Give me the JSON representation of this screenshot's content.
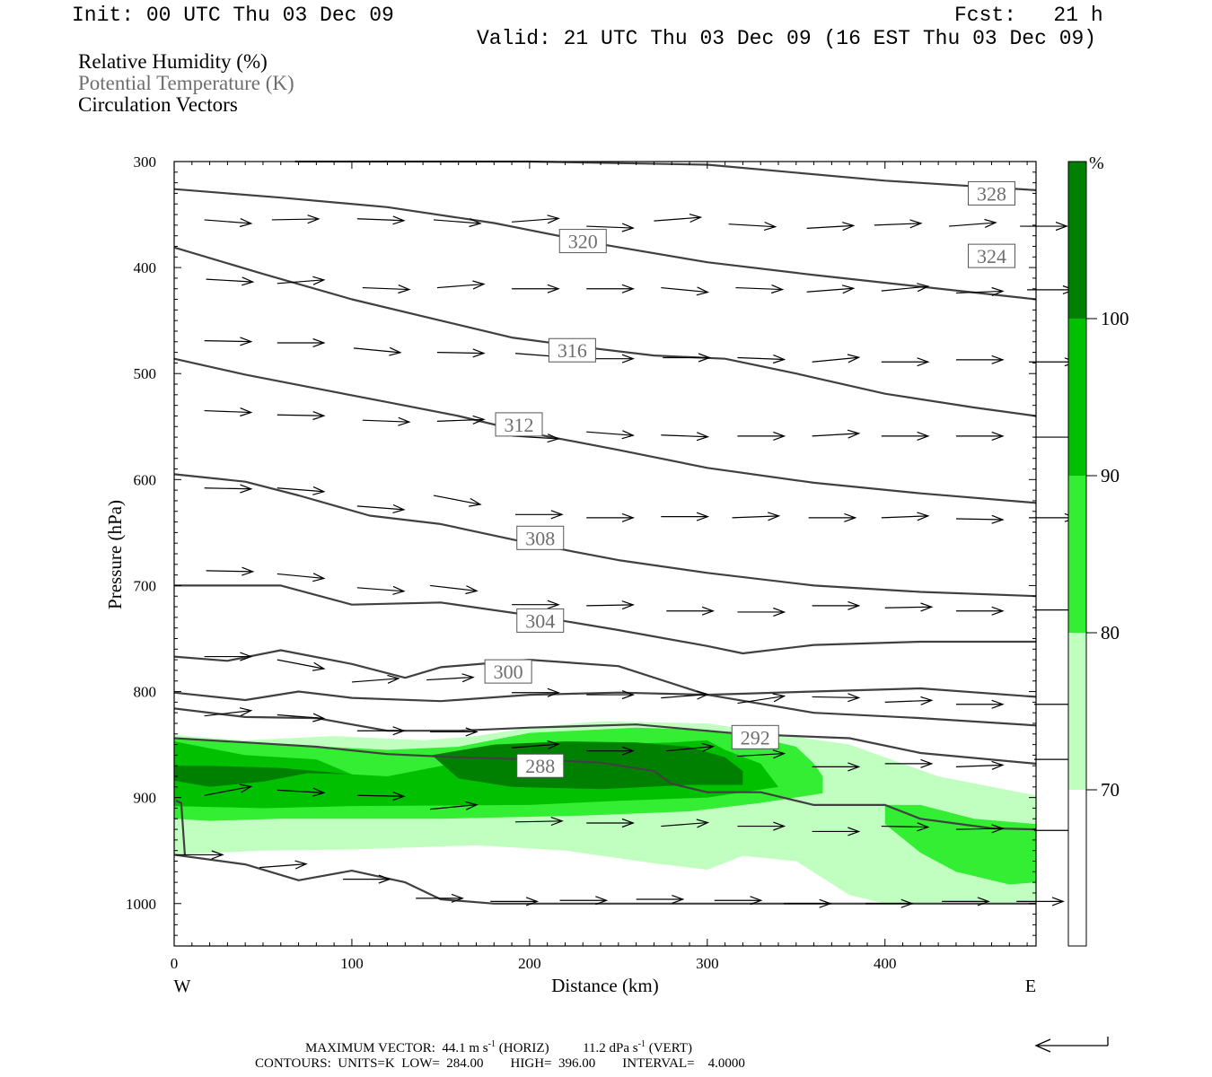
{
  "header": {
    "init": "Init: 00 UTC Thu 03 Dec 09",
    "fcst": "Fcst:   21 h",
    "valid": "Valid: 21 UTC Thu 03 Dec 09 (16 EST Thu 03 Dec 09)"
  },
  "legend": {
    "rh": "Relative Humidity (%)",
    "theta": "Potential Temperature (K)",
    "vectors": "Circulation Vectors"
  },
  "footer": {
    "max_vector_prefix": "MAXIMUM VECTOR:",
    "horiz_value": "44.1 m s",
    "horiz_exp": "-1",
    "horiz_tag": "(HORIZ)",
    "vert_value": "11.2 dPa s",
    "vert_exp": "-1",
    "vert_tag": "(VERT)",
    "contours": "CONTOURS:  UNITS=K  LOW=  284.00        HIGH=  396.00        INTERVAL=    4.0000"
  },
  "colors": {
    "rh_70": "#c0ffc0",
    "rh_80": "#33ee33",
    "rh_90": "#00c000",
    "rh_100": "#008000",
    "contour": "#404040",
    "label_gray": "#6e6e6e"
  },
  "chart_data": {
    "type": "cross-section",
    "xlabel": "Distance (km)",
    "ylabel": "Pressure (hPa)",
    "xlim": [
      0,
      485
    ],
    "ylim": [
      300,
      1040
    ],
    "y_scale": "linear (pressure increasing downward)",
    "x_ticks": [
      "0",
      "100",
      "200",
      "300",
      "400"
    ],
    "x_tick_values": [
      0,
      100,
      200,
      300,
      400
    ],
    "y_ticks": [
      "300",
      "400",
      "500",
      "600",
      "700",
      "800",
      "900",
      "1000"
    ],
    "y_tick_values": [
      300,
      400,
      500,
      600,
      700,
      800,
      900,
      1000
    ],
    "end_labels": {
      "west": "W",
      "east": "E"
    },
    "colorbar": {
      "unit": "%",
      "levels": [
        "70",
        "80",
        "90",
        "100"
      ]
    },
    "contour_labels": [
      {
        "text": "328",
        "x": 460,
        "p": 330
      },
      {
        "text": "324",
        "x": 460,
        "p": 389
      },
      {
        "text": "320",
        "x": 230,
        "p": 375
      },
      {
        "text": "316",
        "x": 224,
        "p": 478
      },
      {
        "text": "312",
        "x": 194,
        "p": 548
      },
      {
        "text": "308",
        "x": 206,
        "p": 655
      },
      {
        "text": "304",
        "x": 206,
        "p": 733
      },
      {
        "text": "300",
        "x": 188,
        "p": 781
      },
      {
        "text": "292",
        "x": 327,
        "p": 843
      },
      {
        "text": "288",
        "x": 206,
        "p": 870
      }
    ],
    "isentropes": [
      [
        [
          68,
          300
        ],
        [
          200,
          300
        ],
        [
          300,
          303
        ],
        [
          400,
          318
        ],
        [
          485,
          327
        ]
      ],
      [
        [
          0,
          326
        ],
        [
          60,
          334
        ],
        [
          120,
          343
        ],
        [
          180,
          358
        ],
        [
          240,
          378
        ],
        [
          300,
          395
        ],
        [
          360,
          407
        ],
        [
          420,
          418
        ],
        [
          485,
          430
        ]
      ],
      [
        [
          0,
          381
        ],
        [
          50,
          406
        ],
        [
          100,
          430
        ],
        [
          150,
          450
        ],
        [
          190,
          466
        ],
        [
          230,
          475
        ],
        [
          270,
          483
        ],
        [
          310,
          486
        ],
        [
          350,
          500
        ],
        [
          400,
          519
        ],
        [
          450,
          532
        ],
        [
          485,
          540
        ]
      ],
      [
        [
          0,
          486
        ],
        [
          40,
          501
        ],
        [
          80,
          514
        ],
        [
          120,
          527
        ],
        [
          160,
          540
        ],
        [
          200,
          556
        ],
        [
          250,
          572
        ],
        [
          300,
          589
        ],
        [
          360,
          603
        ],
        [
          420,
          613
        ],
        [
          485,
          622
        ]
      ],
      [
        [
          0,
          595
        ],
        [
          40,
          602
        ],
        [
          70,
          615
        ],
        [
          110,
          634
        ],
        [
          150,
          642
        ],
        [
          200,
          660
        ],
        [
          250,
          676
        ],
        [
          300,
          688
        ],
        [
          360,
          700
        ],
        [
          420,
          706
        ],
        [
          485,
          710
        ]
      ],
      [
        [
          0,
          700
        ],
        [
          30,
          700
        ],
        [
          60,
          700
        ],
        [
          100,
          718
        ],
        [
          150,
          716
        ],
        [
          200,
          728
        ],
        [
          250,
          742
        ],
        [
          300,
          757
        ],
        [
          320,
          764
        ],
        [
          360,
          756
        ],
        [
          420,
          753
        ],
        [
          485,
          753
        ]
      ],
      [
        [
          0,
          767
        ],
        [
          30,
          771
        ],
        [
          60,
          761
        ],
        [
          100,
          774
        ],
        [
          130,
          787
        ],
        [
          150,
          777
        ],
        [
          200,
          770
        ],
        [
          250,
          776
        ],
        [
          300,
          803
        ],
        [
          360,
          800
        ],
        [
          420,
          797
        ],
        [
          485,
          805
        ]
      ],
      [
        [
          0,
          801
        ],
        [
          40,
          808
        ],
        [
          70,
          800
        ],
        [
          100,
          806
        ],
        [
          150,
          809
        ],
        [
          200,
          803
        ],
        [
          250,
          801
        ],
        [
          300,
          803
        ],
        [
          360,
          820
        ],
        [
          420,
          825
        ],
        [
          485,
          832
        ]
      ],
      [
        [
          0,
          816
        ],
        [
          40,
          824
        ],
        [
          80,
          825
        ],
        [
          120,
          837
        ],
        [
          160,
          837
        ],
        [
          200,
          834
        ],
        [
          260,
          831
        ],
        [
          320,
          840
        ],
        [
          380,
          844
        ],
        [
          420,
          858
        ],
        [
          485,
          868
        ]
      ],
      [
        [
          0,
          844
        ],
        [
          40,
          848
        ],
        [
          80,
          852
        ],
        [
          120,
          859
        ],
        [
          160,
          862
        ],
        [
          200,
          864
        ],
        [
          240,
          867
        ],
        [
          270,
          875
        ],
        [
          280,
          887
        ],
        [
          300,
          895
        ],
        [
          330,
          895
        ],
        [
          360,
          907
        ],
        [
          400,
          907
        ],
        [
          420,
          920
        ],
        [
          460,
          929
        ],
        [
          485,
          930
        ]
      ],
      [
        [
          0,
          954
        ],
        [
          40,
          963
        ],
        [
          70,
          978
        ],
        [
          100,
          969
        ],
        [
          130,
          980
        ],
        [
          150,
          996
        ],
        [
          180,
          1000
        ],
        [
          300,
          1000
        ],
        [
          485,
          1000
        ]
      ],
      [
        [
          1,
          903
        ],
        [
          4,
          905
        ],
        [
          5,
          930
        ],
        [
          6,
          954
        ]
      ]
    ],
    "vectors": [
      [
        17,
        355,
        4
      ],
      [
        55,
        355,
        -1
      ],
      [
        103,
        354,
        2
      ],
      [
        146,
        355,
        4
      ],
      [
        190,
        357,
        -4
      ],
      [
        232,
        361,
        2
      ],
      [
        270,
        356,
        -4
      ],
      [
        312,
        359,
        3
      ],
      [
        356,
        363,
        -3
      ],
      [
        394,
        360,
        -2
      ],
      [
        436,
        361,
        -4
      ],
      [
        476,
        361,
        0
      ],
      [
        18,
        411,
        3
      ],
      [
        58,
        415,
        -4
      ],
      [
        106,
        419,
        2
      ],
      [
        148,
        419,
        -4
      ],
      [
        190,
        420,
        0
      ],
      [
        232,
        420,
        0
      ],
      [
        274,
        419,
        5
      ],
      [
        316,
        419,
        2
      ],
      [
        356,
        423,
        -4
      ],
      [
        398,
        422,
        -5
      ],
      [
        440,
        424,
        -2
      ],
      [
        480,
        421,
        0
      ],
      [
        17,
        469,
        1
      ],
      [
        58,
        471,
        0
      ],
      [
        101,
        476,
        5
      ],
      [
        148,
        480,
        1
      ],
      [
        192,
        481,
        4
      ],
      [
        232,
        486,
        0
      ],
      [
        275,
        485,
        0
      ],
      [
        317,
        485,
        2
      ],
      [
        359,
        489,
        -5
      ],
      [
        398,
        489,
        0
      ],
      [
        440,
        487,
        0
      ],
      [
        481,
        489,
        0
      ],
      [
        17,
        535,
        2
      ],
      [
        58,
        539,
        1
      ],
      [
        106,
        544,
        2
      ],
      [
        148,
        545,
        -2
      ],
      [
        190,
        559,
        3
      ],
      [
        232,
        555,
        4
      ],
      [
        274,
        558,
        2
      ],
      [
        317,
        559,
        0
      ],
      [
        359,
        559,
        -3
      ],
      [
        398,
        559,
        0
      ],
      [
        440,
        559,
        0
      ],
      [
        484,
        560,
        0
      ],
      [
        17,
        608,
        1
      ],
      [
        58,
        608,
        4
      ],
      [
        103,
        625,
        4
      ],
      [
        146,
        615,
        10
      ],
      [
        192,
        633,
        0
      ],
      [
        232,
        636,
        0
      ],
      [
        274,
        635,
        0
      ],
      [
        314,
        636,
        -2
      ],
      [
        357,
        636,
        0
      ],
      [
        398,
        636,
        -2
      ],
      [
        440,
        637,
        1
      ],
      [
        481,
        636,
        0
      ],
      [
        18,
        686,
        1
      ],
      [
        58,
        689,
        5
      ],
      [
        103,
        702,
        4
      ],
      [
        144,
        700,
        6
      ],
      [
        190,
        718,
        0
      ],
      [
        232,
        719,
        -1
      ],
      [
        277,
        724,
        0
      ],
      [
        317,
        725,
        0
      ],
      [
        359,
        719,
        0
      ],
      [
        400,
        721,
        -1
      ],
      [
        440,
        724,
        0
      ],
      [
        484,
        723,
        0
      ],
      [
        17,
        767,
        0
      ],
      [
        58,
        770,
        10
      ],
      [
        100,
        791,
        -4
      ],
      [
        142,
        789,
        -3
      ],
      [
        190,
        801,
        0
      ],
      [
        232,
        803,
        0
      ],
      [
        274,
        806,
        -4
      ],
      [
        317,
        811,
        -8
      ],
      [
        359,
        805,
        1
      ],
      [
        400,
        810,
        -2
      ],
      [
        440,
        812,
        0
      ],
      [
        484,
        812,
        0
      ],
      [
        17,
        823,
        -6
      ],
      [
        58,
        822,
        4
      ],
      [
        103,
        837,
        0
      ],
      [
        144,
        838,
        0
      ],
      [
        190,
        853,
        -4
      ],
      [
        232,
        856,
        0
      ],
      [
        277,
        856,
        -5
      ],
      [
        317,
        861,
        -3
      ],
      [
        359,
        871,
        0
      ],
      [
        400,
        868,
        0
      ],
      [
        440,
        871,
        -2
      ],
      [
        484,
        864,
        0
      ],
      [
        17,
        898,
        -10
      ],
      [
        58,
        893,
        3
      ],
      [
        103,
        898,
        1
      ],
      [
        144,
        911,
        -5
      ],
      [
        192,
        923,
        -1
      ],
      [
        232,
        924,
        0
      ],
      [
        274,
        927,
        -4
      ],
      [
        317,
        927,
        0
      ],
      [
        359,
        932,
        0
      ],
      [
        398,
        927,
        1
      ],
      [
        440,
        930,
        -1
      ],
      [
        484,
        931,
        0
      ],
      [
        1,
        954,
        0
      ],
      [
        48,
        966,
        -4
      ],
      [
        95,
        977,
        0
      ],
      [
        136,
        995,
        0
      ],
      [
        178,
        998,
        0
      ],
      [
        217,
        997,
        0
      ],
      [
        260,
        996,
        0
      ],
      [
        304,
        997,
        0
      ],
      [
        343,
        1000,
        0
      ],
      [
        389,
        1000,
        0
      ],
      [
        432,
        998,
        0
      ],
      [
        474,
        998,
        0
      ]
    ],
    "rh_fill": {
      "rh70": [
        [
          0,
          841
        ],
        [
          40,
          846
        ],
        [
          90,
          842
        ],
        [
          140,
          846
        ],
        [
          170,
          842
        ],
        [
          200,
          834
        ],
        [
          240,
          828
        ],
        [
          300,
          830
        ],
        [
          340,
          840
        ],
        [
          380,
          850
        ],
        [
          430,
          880
        ],
        [
          485,
          898
        ],
        [
          485,
          1000
        ],
        [
          400,
          1000
        ],
        [
          380,
          992
        ],
        [
          350,
          960
        ],
        [
          320,
          955
        ],
        [
          300,
          968
        ],
        [
          270,
          962
        ],
        [
          220,
          950
        ],
        [
          170,
          945
        ],
        [
          100,
          949
        ],
        [
          50,
          950
        ],
        [
          0,
          954
        ]
      ],
      "rh80": [
        [
          0,
          845
        ],
        [
          60,
          850
        ],
        [
          120,
          855
        ],
        [
          160,
          852
        ],
        [
          200,
          839
        ],
        [
          260,
          834
        ],
        [
          300,
          836
        ],
        [
          330,
          844
        ],
        [
          350,
          852
        ],
        [
          360,
          868
        ],
        [
          365,
          880
        ],
        [
          365,
          896
        ],
        [
          330,
          905
        ],
        [
          290,
          913
        ],
        [
          230,
          917
        ],
        [
          150,
          920
        ],
        [
          60,
          920
        ],
        [
          20,
          922
        ],
        [
          0,
          920
        ]
      ],
      "rh80b": [
        [
          400,
          907
        ],
        [
          420,
          907
        ],
        [
          450,
          920
        ],
        [
          485,
          925
        ],
        [
          485,
          980
        ],
        [
          470,
          982
        ],
        [
          440,
          970
        ],
        [
          420,
          952
        ],
        [
          400,
          925
        ]
      ],
      "rh90": [
        [
          0,
          847
        ],
        [
          40,
          860
        ],
        [
          80,
          864
        ],
        [
          100,
          878
        ],
        [
          120,
          880
        ],
        [
          160,
          867
        ],
        [
          200,
          855
        ],
        [
          240,
          850
        ],
        [
          280,
          848
        ],
        [
          300,
          846
        ],
        [
          310,
          855
        ],
        [
          330,
          868
        ],
        [
          340,
          890
        ],
        [
          320,
          895
        ],
        [
          300,
          900
        ],
        [
          250,
          903
        ],
        [
          200,
          907
        ],
        [
          100,
          908
        ],
        [
          50,
          910
        ],
        [
          0,
          908
        ]
      ],
      "rh100": [
        [
          0,
          884
        ],
        [
          20,
          890
        ],
        [
          50,
          885
        ],
        [
          75,
          877
        ],
        [
          100,
          878
        ],
        [
          60,
          872
        ],
        [
          20,
          870
        ],
        [
          0,
          870
        ]
      ],
      "rh100b": [
        [
          145,
          860
        ],
        [
          180,
          850
        ],
        [
          220,
          847
        ],
        [
          260,
          848
        ],
        [
          290,
          852
        ],
        [
          310,
          862
        ],
        [
          320,
          875
        ],
        [
          320,
          888
        ],
        [
          290,
          888
        ],
        [
          240,
          892
        ],
        [
          190,
          890
        ],
        [
          160,
          882
        ]
      ]
    }
  }
}
